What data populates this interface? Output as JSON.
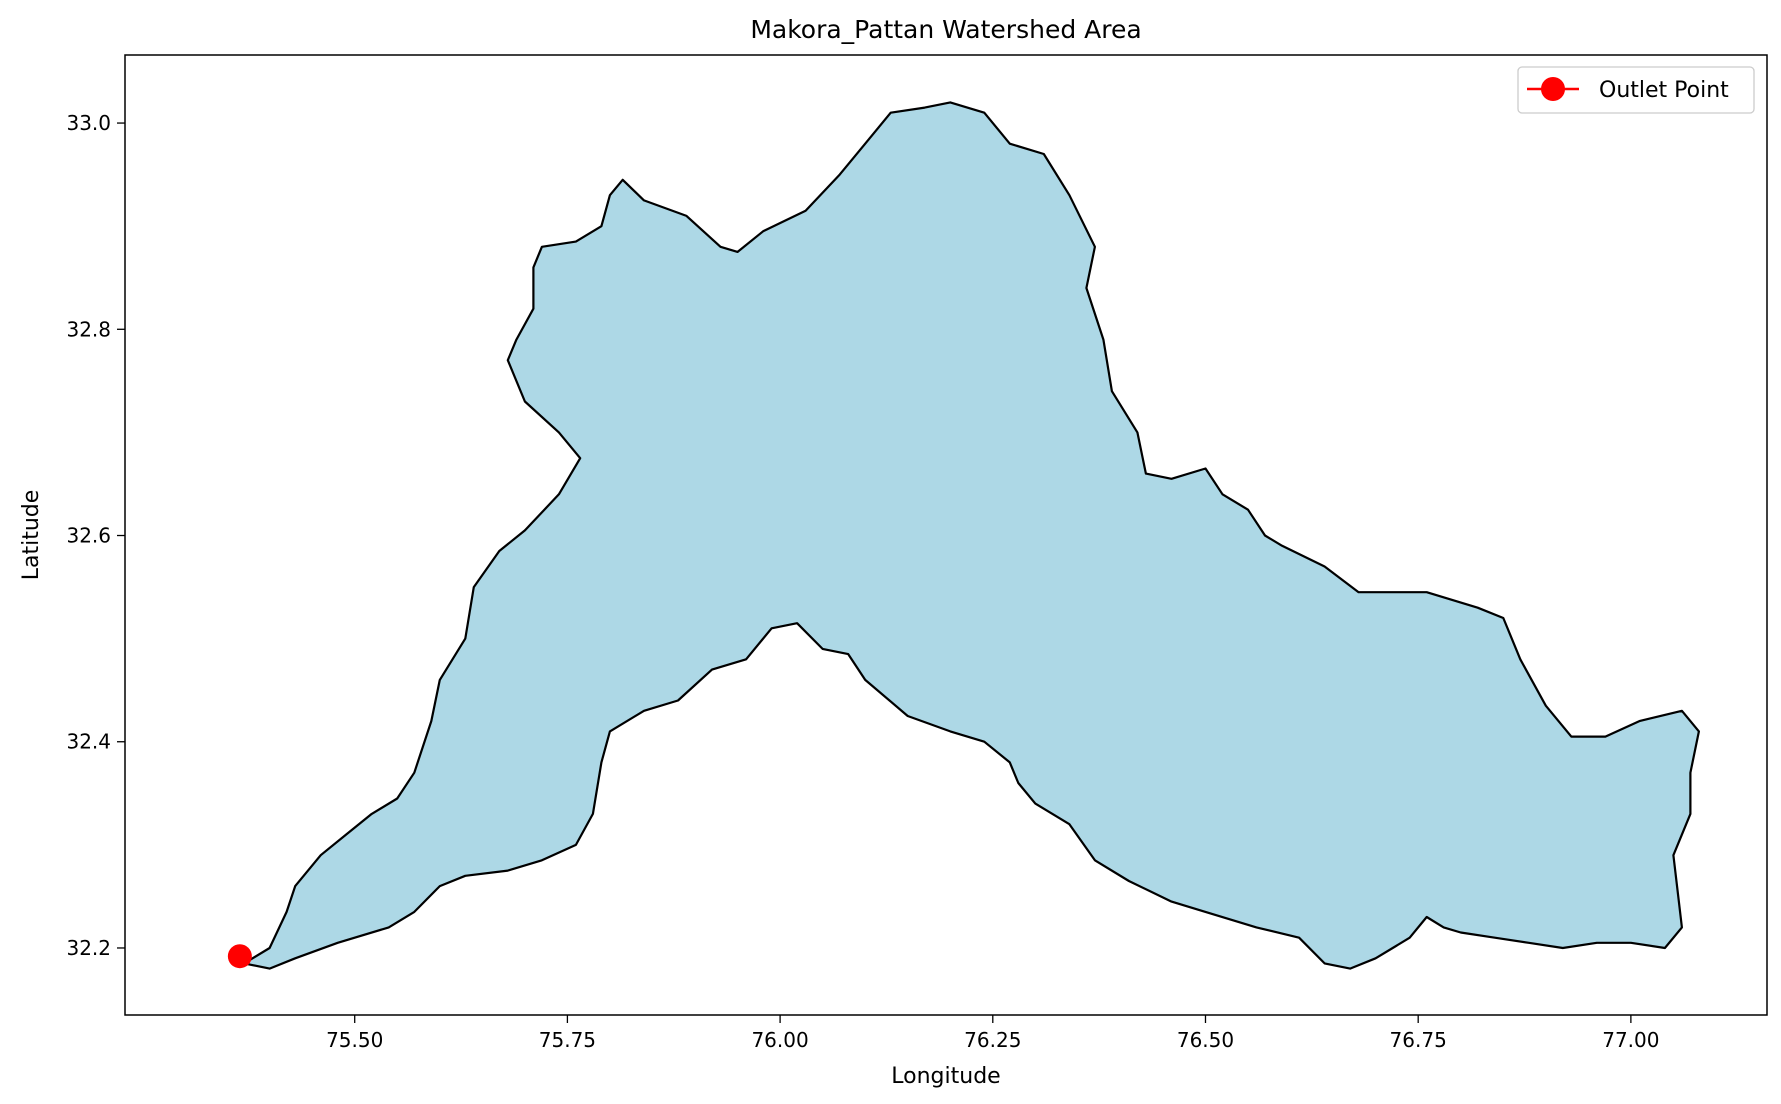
{
  "chart_data": {
    "type": "map",
    "title": "Makora_Pattan Watershed Area",
    "xlabel": "Longitude",
    "ylabel": "Latitude",
    "xlim": [
      75.23,
      77.16
    ],
    "ylim": [
      32.135,
      33.066
    ],
    "xticks": [
      75.5,
      75.75,
      76.0,
      76.25,
      76.5,
      76.75,
      77.0
    ],
    "xtick_labels": [
      "75.50",
      "75.75",
      "76.00",
      "76.25",
      "76.50",
      "76.75",
      "77.00"
    ],
    "yticks": [
      32.2,
      32.4,
      32.6,
      32.8,
      33.0
    ],
    "ytick_labels": [
      "32.2",
      "32.4",
      "32.6",
      "32.8",
      "33.0"
    ],
    "grid": false,
    "legend": {
      "position": "top-right",
      "entries": [
        {
          "label": "Outlet Point",
          "color": "#ff0000",
          "marker": "circle-line"
        }
      ]
    },
    "watershed": {
      "fill": "#add8e6",
      "edge": "#000000",
      "boundary": [
        [
          75.37,
          32.185
        ],
        [
          75.4,
          32.2
        ],
        [
          75.42,
          32.235
        ],
        [
          75.43,
          32.26
        ],
        [
          75.46,
          32.29
        ],
        [
          75.49,
          32.31
        ],
        [
          75.52,
          32.33
        ],
        [
          75.55,
          32.345
        ],
        [
          75.57,
          32.37
        ],
        [
          75.59,
          32.42
        ],
        [
          75.6,
          32.46
        ],
        [
          75.63,
          32.5
        ],
        [
          75.64,
          32.55
        ],
        [
          75.67,
          32.585
        ],
        [
          75.7,
          32.605
        ],
        [
          75.74,
          32.64
        ],
        [
          75.765,
          32.675
        ],
        [
          75.74,
          32.7
        ],
        [
          75.7,
          32.73
        ],
        [
          75.68,
          32.77
        ],
        [
          75.69,
          32.79
        ],
        [
          75.71,
          32.82
        ],
        [
          75.71,
          32.86
        ],
        [
          75.72,
          32.88
        ],
        [
          75.76,
          32.885
        ],
        [
          75.79,
          32.9
        ],
        [
          75.8,
          32.93
        ],
        [
          75.815,
          32.945
        ],
        [
          75.84,
          32.925
        ],
        [
          75.89,
          32.91
        ],
        [
          75.93,
          32.88
        ],
        [
          75.95,
          32.875
        ],
        [
          75.98,
          32.895
        ],
        [
          76.03,
          32.915
        ],
        [
          76.07,
          32.95
        ],
        [
          76.1,
          32.98
        ],
        [
          76.13,
          33.01
        ],
        [
          76.17,
          33.015
        ],
        [
          76.2,
          33.02
        ],
        [
          76.24,
          33.01
        ],
        [
          76.27,
          32.98
        ],
        [
          76.31,
          32.97
        ],
        [
          76.34,
          32.93
        ],
        [
          76.37,
          32.88
        ],
        [
          76.36,
          32.84
        ],
        [
          76.38,
          32.79
        ],
        [
          76.39,
          32.74
        ],
        [
          76.42,
          32.7
        ],
        [
          76.43,
          32.66
        ],
        [
          76.46,
          32.655
        ],
        [
          76.5,
          32.665
        ],
        [
          76.52,
          32.64
        ],
        [
          76.55,
          32.625
        ],
        [
          76.57,
          32.6
        ],
        [
          76.59,
          32.59
        ],
        [
          76.64,
          32.57
        ],
        [
          76.68,
          32.545
        ],
        [
          76.72,
          32.545
        ],
        [
          76.76,
          32.545
        ],
        [
          76.82,
          32.53
        ],
        [
          76.85,
          32.52
        ],
        [
          76.87,
          32.48
        ],
        [
          76.9,
          32.435
        ],
        [
          76.93,
          32.405
        ],
        [
          76.97,
          32.405
        ],
        [
          77.01,
          32.42
        ],
        [
          77.06,
          32.43
        ],
        [
          77.08,
          32.41
        ],
        [
          77.07,
          32.37
        ],
        [
          77.07,
          32.33
        ],
        [
          77.05,
          32.29
        ],
        [
          77.06,
          32.22
        ],
        [
          77.04,
          32.2
        ],
        [
          77.0,
          32.205
        ],
        [
          76.96,
          32.205
        ],
        [
          76.92,
          32.2
        ],
        [
          76.88,
          32.205
        ],
        [
          76.84,
          32.21
        ],
        [
          76.8,
          32.215
        ],
        [
          76.78,
          32.22
        ],
        [
          76.76,
          32.23
        ],
        [
          76.74,
          32.21
        ],
        [
          76.72,
          32.2
        ],
        [
          76.7,
          32.19
        ],
        [
          76.67,
          32.18
        ],
        [
          76.64,
          32.185
        ],
        [
          76.61,
          32.21
        ],
        [
          76.56,
          32.22
        ],
        [
          76.5,
          32.235
        ],
        [
          76.46,
          32.245
        ],
        [
          76.41,
          32.265
        ],
        [
          76.37,
          32.285
        ],
        [
          76.34,
          32.32
        ],
        [
          76.3,
          32.34
        ],
        [
          76.28,
          32.36
        ],
        [
          76.27,
          32.38
        ],
        [
          76.24,
          32.4
        ],
        [
          76.2,
          32.41
        ],
        [
          76.15,
          32.425
        ],
        [
          76.1,
          32.46
        ],
        [
          76.08,
          32.485
        ],
        [
          76.05,
          32.49
        ],
        [
          76.02,
          32.515
        ],
        [
          75.99,
          32.51
        ],
        [
          75.96,
          32.48
        ],
        [
          75.92,
          32.47
        ],
        [
          75.88,
          32.44
        ],
        [
          75.84,
          32.43
        ],
        [
          75.8,
          32.41
        ],
        [
          75.79,
          32.38
        ],
        [
          75.78,
          32.33
        ],
        [
          75.76,
          32.3
        ],
        [
          75.72,
          32.285
        ],
        [
          75.68,
          32.275
        ],
        [
          75.63,
          32.27
        ],
        [
          75.6,
          32.26
        ],
        [
          75.57,
          32.235
        ],
        [
          75.54,
          32.22
        ],
        [
          75.48,
          32.205
        ],
        [
          75.43,
          32.19
        ],
        [
          75.4,
          32.18
        ]
      ]
    },
    "outlet": {
      "label": "Outlet Point",
      "lon": 75.365,
      "lat": 32.192,
      "color": "#ff0000"
    }
  }
}
